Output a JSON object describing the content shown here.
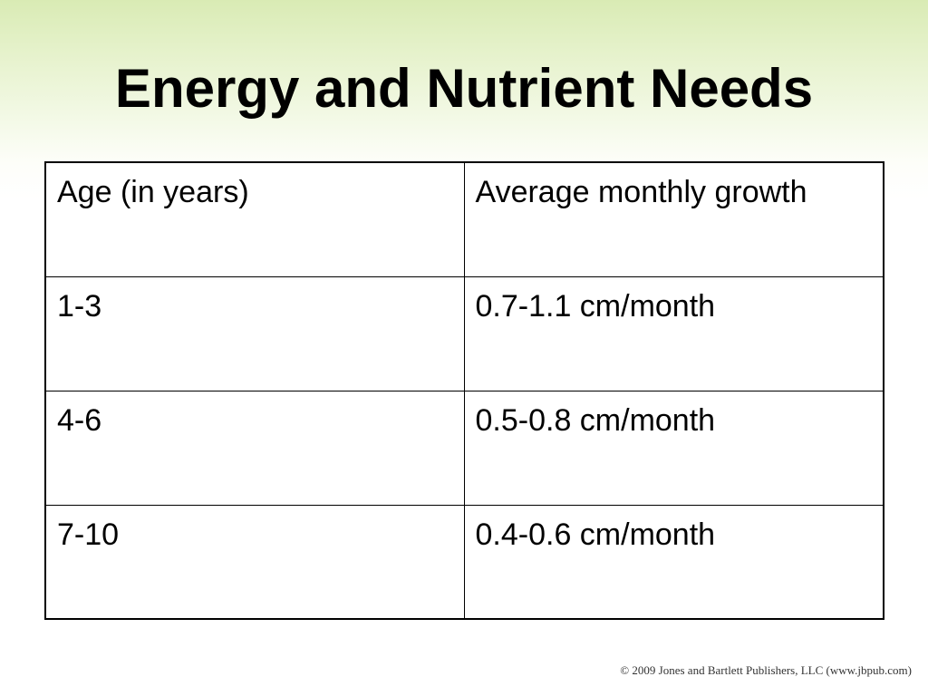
{
  "slide": {
    "title": "Energy and Nutrient Needs",
    "copyright": "© 2009 Jones and Bartlett Publishers, LLC (www.jbpub.com)"
  },
  "table": {
    "headers": [
      "Age (in years)",
      "Average monthly growth"
    ],
    "rows": [
      [
        "1-3",
        "0.7-1.1 cm/month"
      ],
      [
        "4-6",
        "0.5-0.8 cm/month"
      ],
      [
        "7-10",
        "0.4-0.6 cm/month"
      ]
    ]
  },
  "colors": {
    "background_top": "#d9ebb4",
    "background_bottom": "#ffffff",
    "text": "#000000"
  }
}
